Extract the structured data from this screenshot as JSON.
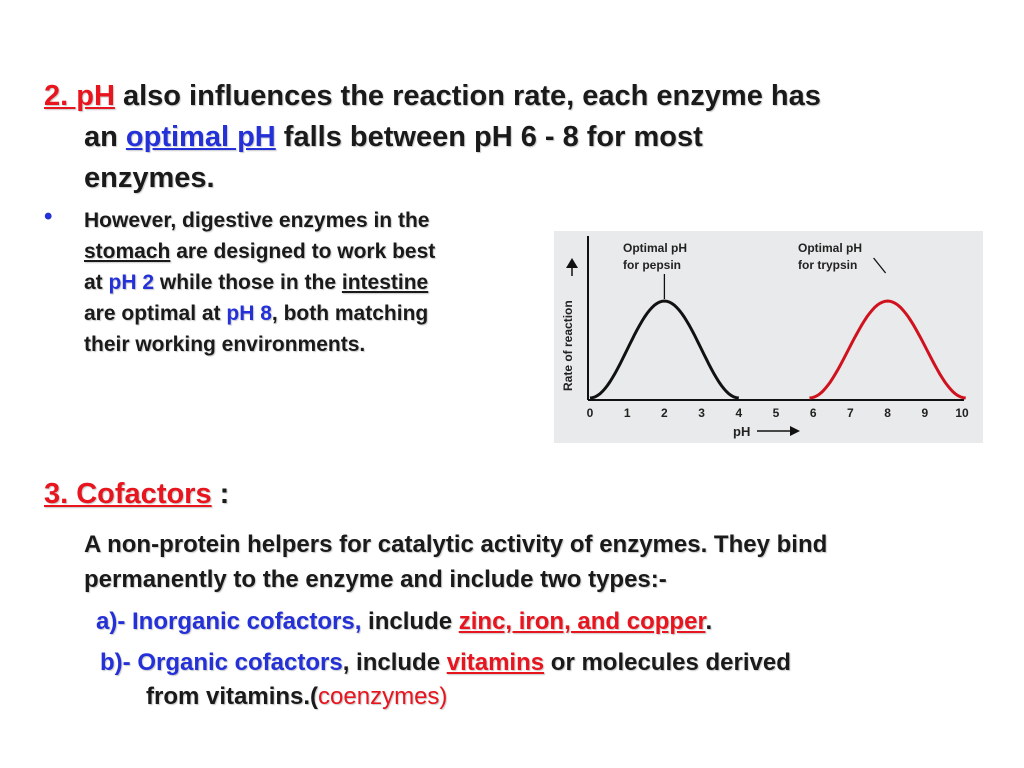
{
  "point2": {
    "number": "2. pH",
    "text1": " also influences the reaction rate, each enzyme has",
    "text2": "an ",
    "optimal": "optimal pH",
    "text3": " falls between pH 6 - 8 for most",
    "text4": "enzymes."
  },
  "bullet": {
    "symbol": "•",
    "t1": "However, digestive enzymes in the",
    "stomach": "stomach",
    "t2": " are designed to work best",
    "t3": "at ",
    "ph2": "pH 2",
    "t4": " while those in the ",
    "intestine": "intestine",
    "t5": "are optimal at ",
    "ph8": "pH 8",
    "t6": ", both matching",
    "t7": "their working environments."
  },
  "graph": {
    "ylabel": "Rate of reaction",
    "xlabel": "pH",
    "ticks": [
      "0",
      "1",
      "2",
      "3",
      "4",
      "5",
      "6",
      "7",
      "8",
      "9",
      "10"
    ],
    "pepsin_label_1": "Optimal pH",
    "pepsin_label_2": "for pepsin",
    "trypsin_label_1": "Optimal pH",
    "trypsin_label_2": "for trypsin",
    "colors": {
      "pepsin": "#111111",
      "trypsin": "#d0121e",
      "background": "#e9eaeb"
    },
    "pepsin_optimum": 2,
    "trypsin_optimum": 8
  },
  "point3": {
    "number": "3. Cofactors",
    "colon": " :",
    "desc1": "A non-protein helpers for catalytic activity of enzymes. They bind",
    "desc2": "permanently to the enzyme and include two types:-",
    "a_label": "a)- Inorganic cofactors,",
    "a_text": " include ",
    "a_examples": "zinc, iron, and copper",
    "a_end": ".",
    "b_label": "b)- Organic cofactors",
    "b_text": ", include ",
    "b_vitamins": "vitamins",
    "b_text2": " or molecules derived",
    "b_text3": "from vitamins.(",
    "b_coenzymes": "coenzymes)"
  }
}
